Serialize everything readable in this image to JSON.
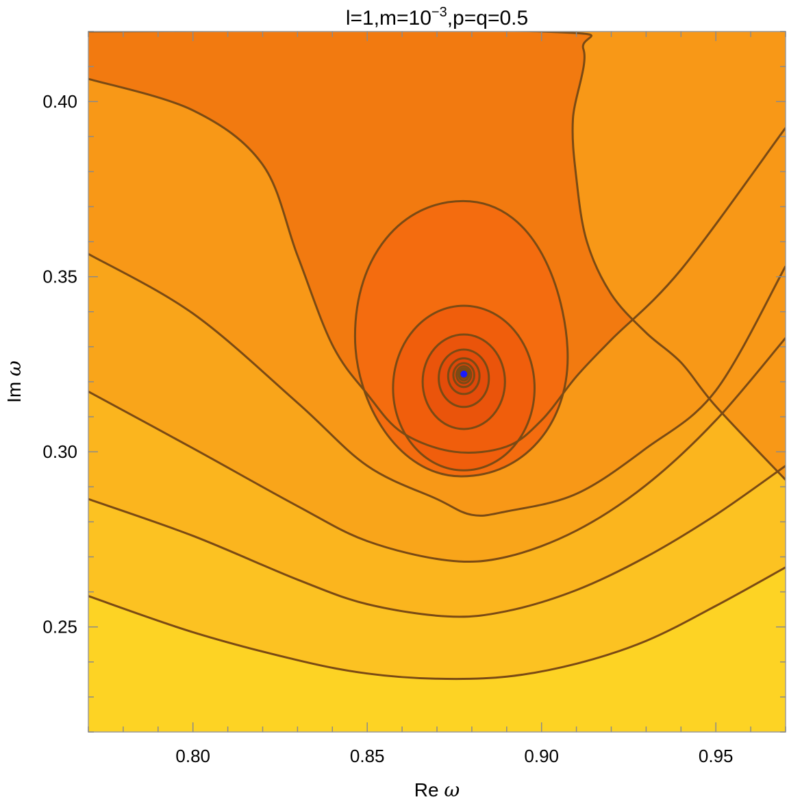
{
  "chart_data": {
    "type": "contour",
    "title_main": "l=1,m=10",
    "title_exp": "−3",
    "title_rest": ",p=q=0.5",
    "xlabel_text": "Re ",
    "xlabel_symbol": "ω",
    "ylabel_text": "Im ",
    "ylabel_symbol": "ω",
    "xlim": [
      0.77,
      0.97
    ],
    "ylim": [
      0.22,
      0.42
    ],
    "x_ticks": [
      {
        "value": 0.8,
        "label": "0.80"
      },
      {
        "value": 0.85,
        "label": "0.85"
      },
      {
        "value": 0.9,
        "label": "0.90"
      },
      {
        "value": 0.95,
        "label": "0.95"
      }
    ],
    "y_ticks": [
      {
        "value": 0.25,
        "label": "0.25"
      },
      {
        "value": 0.3,
        "label": "0.30"
      },
      {
        "value": 0.35,
        "label": "0.35"
      },
      {
        "value": 0.4,
        "label": "0.40"
      }
    ],
    "minor_step": 0.01,
    "grid": false,
    "marker": {
      "x": 0.8777,
      "y": 0.3222,
      "color": "#1a1aff"
    },
    "colors": {
      "line": "#7a4a14",
      "low": "#fdd324",
      "high": "#f27a10",
      "center": "#e8500c"
    },
    "contour_levels": [
      {
        "name": "band-1",
        "color": "#fdd324",
        "points": [
          [
            0.77,
            0.2588
          ],
          [
            0.8,
            0.2485
          ],
          [
            0.83,
            0.2405
          ],
          [
            0.85,
            0.2367
          ],
          [
            0.87,
            0.2352
          ],
          [
            0.89,
            0.2358
          ],
          [
            0.91,
            0.2395
          ],
          [
            0.93,
            0.246
          ],
          [
            0.95,
            0.256
          ],
          [
            0.97,
            0.267
          ]
        ]
      },
      {
        "name": "band-2",
        "color": "#fcc222",
        "points": [
          [
            0.77,
            0.2865
          ],
          [
            0.8,
            0.276
          ],
          [
            0.83,
            0.2635
          ],
          [
            0.85,
            0.2565
          ],
          [
            0.873,
            0.253
          ],
          [
            0.89,
            0.2545
          ],
          [
            0.91,
            0.2605
          ],
          [
            0.93,
            0.27
          ],
          [
            0.95,
            0.282
          ],
          [
            0.97,
            0.296
          ]
        ]
      },
      {
        "name": "band-3",
        "color": "#fbb51e",
        "points": [
          [
            0.77,
            0.3172
          ],
          [
            0.8,
            0.301
          ],
          [
            0.83,
            0.2845
          ],
          [
            0.85,
            0.2745
          ],
          [
            0.873,
            0.269
          ],
          [
            0.89,
            0.27
          ],
          [
            0.91,
            0.2775
          ],
          [
            0.93,
            0.2905
          ],
          [
            0.95,
            0.309
          ],
          [
            0.97,
            0.3325
          ]
        ]
      },
      {
        "name": "band-4",
        "color": "#f9a51a",
        "points": [
          [
            0.77,
            0.3565
          ],
          [
            0.8,
            0.3395
          ],
          [
            0.83,
            0.314
          ],
          [
            0.85,
            0.296
          ],
          [
            0.87,
            0.2865
          ],
          [
            0.88,
            0.282
          ],
          [
            0.89,
            0.283
          ],
          [
            0.91,
            0.288
          ],
          [
            0.93,
            0.301
          ],
          [
            0.95,
            0.3175
          ],
          [
            0.97,
            0.353
          ]
        ]
      },
      {
        "name": "band-5",
        "color": "#f89817",
        "points": [
          [
            0.77,
            0.4065
          ],
          [
            0.8,
            0.3975
          ],
          [
            0.82,
            0.382
          ],
          [
            0.83,
            0.356
          ],
          [
            0.84,
            0.3305
          ],
          [
            0.85,
            0.3165
          ],
          [
            0.86,
            0.3055
          ],
          [
            0.875,
            0.3
          ],
          [
            0.89,
            0.3015
          ],
          [
            0.9,
            0.309
          ],
          [
            0.91,
            0.3215
          ],
          [
            0.92,
            0.332
          ],
          [
            0.94,
            0.352
          ],
          [
            0.97,
            0.3925
          ]
        ]
      },
      {
        "name": "band-6",
        "color": "#f58a14",
        "points": [
          [
            0.77,
            0.42
          ],
          [
            0.9,
            0.42
          ],
          [
            0.912,
            0.415
          ],
          [
            0.909,
            0.395
          ],
          [
            0.91,
            0.378
          ],
          [
            0.913,
            0.36
          ],
          [
            0.92,
            0.345
          ],
          [
            0.93,
            0.334
          ],
          [
            0.94,
            0.3255
          ],
          [
            0.95,
            0.313
          ],
          [
            0.97,
            0.292
          ]
        ]
      }
    ]
  }
}
